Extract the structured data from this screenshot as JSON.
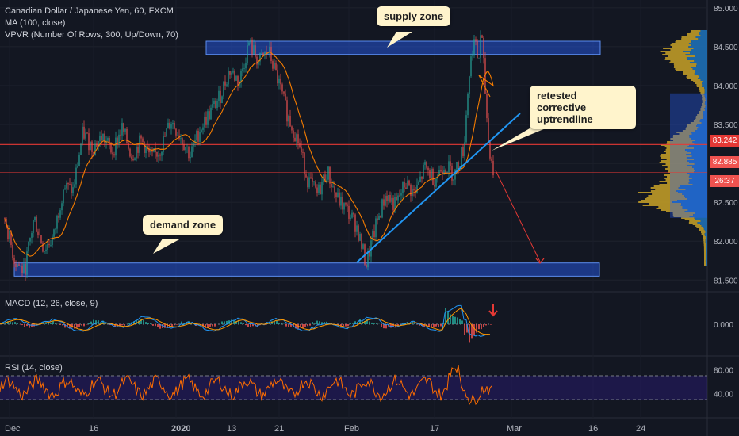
{
  "chart_data": [
    {
      "type": "candlestick",
      "title": "Canadian Dollar / Japanese Yen, 60, FXCM",
      "indicators": [
        "MA (100, close)",
        "VPVR (Number Of Rows, 300, Up/Down, 70)"
      ],
      "x_ticks": [
        "Dec",
        "16",
        "2020",
        "13",
        "21",
        "Feb",
        "17",
        "Mar",
        "16",
        "24"
      ],
      "y_ticks": [
        "85.000",
        "84.500",
        "84.000",
        "83.500",
        "83.000",
        "82.500",
        "82.000",
        "81.500"
      ],
      "ylim": [
        81.35,
        85.1
      ],
      "price_labels": {
        "current": "82.885",
        "line": "83.242",
        "countdown": "26:37"
      },
      "price_path": [
        [
          0,
          82.3
        ],
        [
          0.02,
          81.75
        ],
        [
          0.04,
          81.6
        ],
        [
          0.06,
          82.3
        ],
        [
          0.08,
          81.9
        ],
        [
          0.1,
          82.05
        ],
        [
          0.12,
          82.7
        ],
        [
          0.14,
          82.65
        ],
        [
          0.16,
          83.4
        ],
        [
          0.18,
          83.2
        ],
        [
          0.2,
          83.35
        ],
        [
          0.22,
          83.15
        ],
        [
          0.24,
          83.45
        ],
        [
          0.26,
          83.1
        ],
        [
          0.28,
          83.3
        ],
        [
          0.3,
          83.05
        ],
        [
          0.32,
          83.2
        ],
        [
          0.34,
          83.55
        ],
        [
          0.36,
          83.35
        ],
        [
          0.38,
          83.1
        ],
        [
          0.4,
          83.45
        ],
        [
          0.42,
          83.65
        ],
        [
          0.44,
          83.85
        ],
        [
          0.46,
          84.2
        ],
        [
          0.48,
          84.05
        ],
        [
          0.5,
          84.55
        ],
        [
          0.52,
          84.3
        ],
        [
          0.54,
          84.45
        ],
        [
          0.56,
          84.05
        ],
        [
          0.58,
          83.6
        ],
        [
          0.6,
          83.3
        ],
        [
          0.62,
          82.8
        ],
        [
          0.64,
          82.6
        ],
        [
          0.66,
          82.9
        ],
        [
          0.68,
          82.55
        ],
        [
          0.7,
          82.4
        ],
        [
          0.72,
          82.2
        ],
        [
          0.74,
          81.7
        ],
        [
          0.76,
          82.2
        ],
        [
          0.78,
          82.6
        ],
        [
          0.8,
          82.45
        ],
        [
          0.82,
          82.75
        ],
        [
          0.84,
          82.6
        ],
        [
          0.86,
          82.95
        ],
        [
          0.88,
          82.8
        ],
        [
          0.9,
          83.0
        ],
        [
          0.92,
          82.85
        ],
        [
          0.94,
          83.2
        ],
        [
          0.95,
          84.1
        ],
        [
          0.96,
          84.6
        ],
        [
          0.97,
          84.3
        ],
        [
          0.975,
          84.75
        ],
        [
          0.98,
          84.3
        ],
        [
          0.99,
          83.3
        ],
        [
          1.0,
          82.9
        ]
      ],
      "annotations": {
        "supply_zone": {
          "label": "supply zone",
          "range": [
            84.4,
            84.57
          ]
        },
        "demand_zone": {
          "label": "demand zone",
          "range": [
            81.55,
            81.72
          ]
        },
        "trendline": {
          "label": "retested corrective uptrendline"
        }
      },
      "colors": {
        "up": "#26a69a",
        "down": "#ef5350",
        "ma": "#f57c00",
        "zone": "#2962ff",
        "trendline": "#2196f3",
        "hline": "#e53935",
        "vp_up": "#c9a227",
        "vp_down": "#1e6fb5"
      }
    },
    {
      "type": "line",
      "title": "MACD (12, 26, close, 9)",
      "y_ticks": [
        "0.000"
      ],
      "colors": {
        "macd": "#2196f3",
        "signal": "#ff9800"
      }
    },
    {
      "type": "line",
      "title": "RSI (14, close)",
      "y_ticks": [
        "80.00",
        "40.00"
      ],
      "bands": [
        70,
        30
      ],
      "colors": {
        "rsi": "#ff6d00",
        "band": "#311b92"
      }
    }
  ]
}
